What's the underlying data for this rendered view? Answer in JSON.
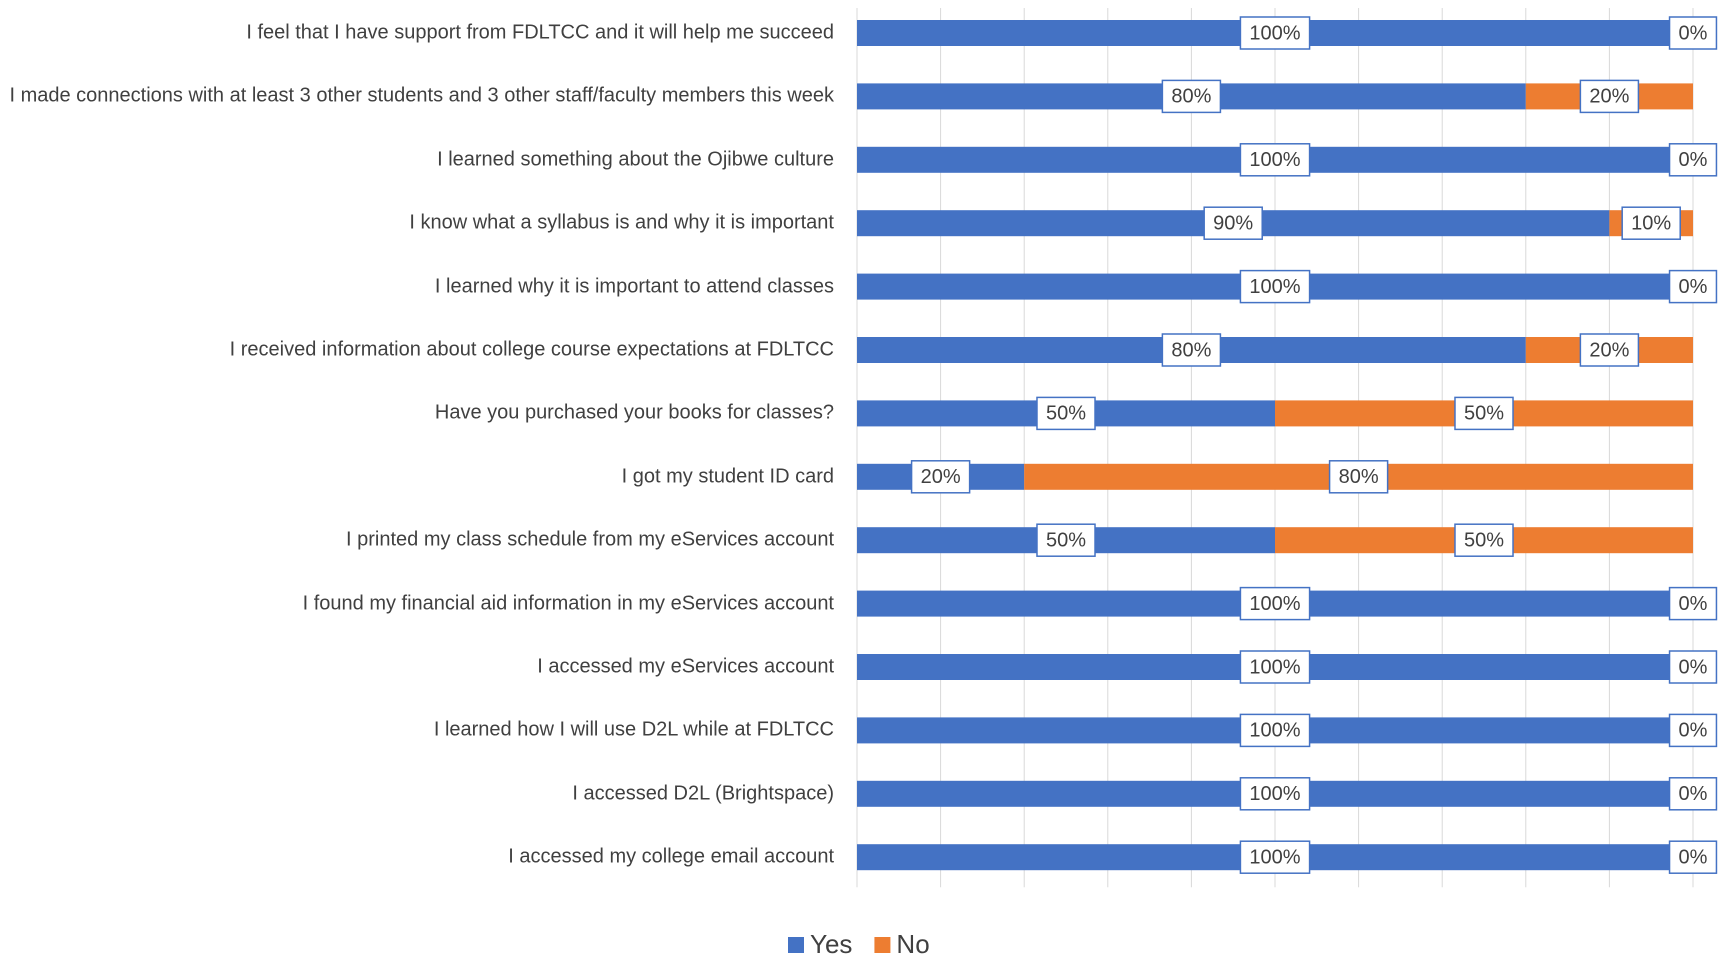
{
  "chart_data": {
    "type": "stacked_barh",
    "categories": [
      "I feel that I have support from FDLTCC and it will help me succeed",
      "I made connections with at least 3 other students and 3 other staff/faculty members this week",
      "I learned something about the Ojibwe culture",
      "I know what a syllabus is and why it is important",
      "I learned why it is important to attend classes",
      "I received information about college course expectations at FDLTCC",
      "Have you purchased your books for classes?",
      "I got my student ID card",
      "I printed my class schedule from my eServices account",
      "I found my financial aid information in my eServices account",
      "I accessed my eServices account",
      "I learned how I will use D2L while at FDLTCC",
      "I accessed D2L (Brightspace)",
      "I accessed my college email account"
    ],
    "series": [
      {
        "name": "Yes",
        "color": "#4472c4",
        "values": [
          100,
          80,
          100,
          90,
          100,
          80,
          50,
          20,
          50,
          100,
          100,
          100,
          100,
          100
        ],
        "value_labels": [
          "100%",
          "80%",
          "100%",
          "90%",
          "100%",
          "80%",
          "50%",
          "20%",
          "50%",
          "100%",
          "100%",
          "100%",
          "100%",
          "100%"
        ]
      },
      {
        "name": "No",
        "color": "#ed7d31",
        "values": [
          0,
          20,
          0,
          10,
          0,
          20,
          50,
          80,
          50,
          0,
          0,
          0,
          0,
          0
        ],
        "value_labels": [
          "0%",
          "20%",
          "0%",
          "10%",
          "0%",
          "20%",
          "50%",
          "80%",
          "50%",
          "0%",
          "0%",
          "0%",
          "0%",
          "0%"
        ]
      }
    ],
    "xlim": [
      0,
      100
    ],
    "xticks": [
      0,
      10,
      20,
      30,
      40,
      50,
      60,
      70,
      80,
      90,
      100
    ],
    "grid": true,
    "legend": "bottom"
  }
}
